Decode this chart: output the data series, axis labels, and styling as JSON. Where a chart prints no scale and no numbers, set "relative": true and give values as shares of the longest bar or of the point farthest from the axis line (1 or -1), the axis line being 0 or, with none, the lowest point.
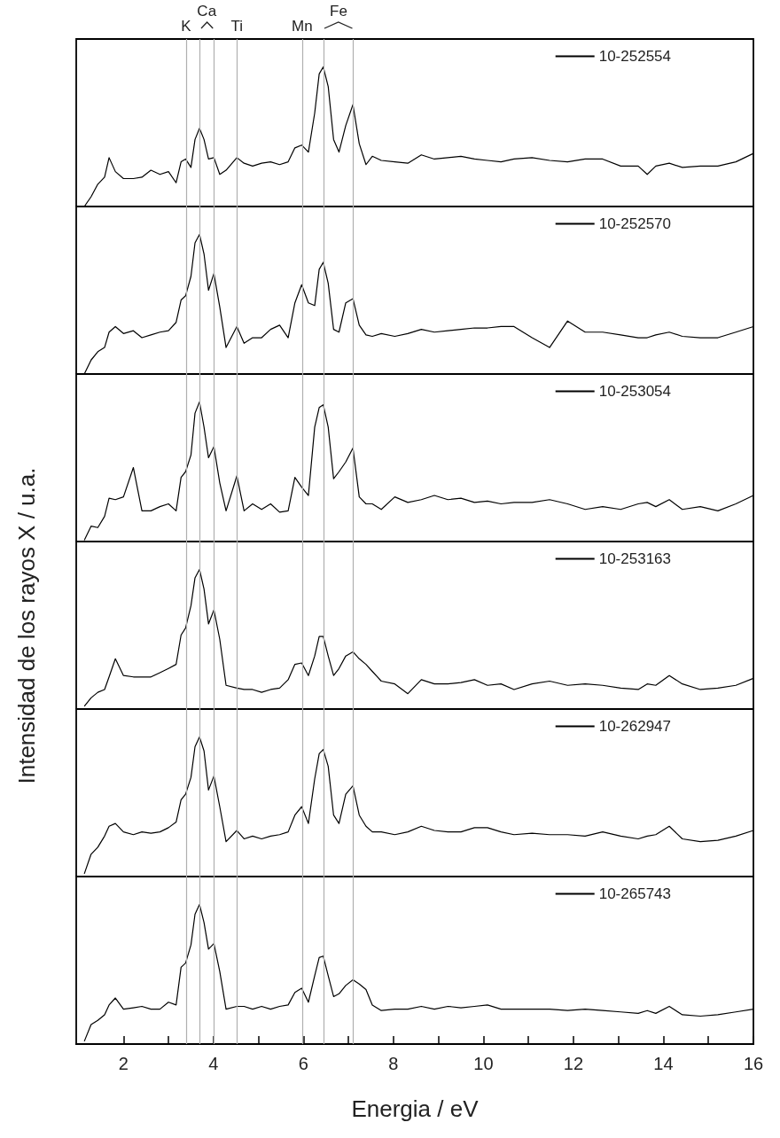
{
  "chart_data": [
    {
      "type": "line",
      "relative": true,
      "xlim": [
        0.95,
        16
      ],
      "tick_labels": false,
      "legend": "top right",
      "ref_lines": [
        {
          "axis": "x",
          "value": 3.39,
          "color": "#b0b0b0",
          "label": "K"
        },
        {
          "axis": "x",
          "value": 3.7,
          "color": "#b0b0b0",
          "label": "Ca"
        },
        {
          "axis": "x",
          "value": 4.0,
          "color": "#b0b0b0"
        },
        {
          "axis": "x",
          "value": 4.52,
          "color": "#b0b0b0",
          "label": "Ti"
        },
        {
          "axis": "x",
          "value": 5.97,
          "color": "#b0b0b0",
          "label": "Mn"
        },
        {
          "axis": "x",
          "value": 6.45,
          "color": "#b0b0b0",
          "label": "Fe"
        },
        {
          "axis": "x",
          "value": 7.11,
          "color": "#b0b0b0"
        }
      ],
      "x": [
        1.13,
        1.28,
        1.43,
        1.58,
        1.68,
        1.82,
        2.0,
        2.22,
        2.41,
        2.61,
        2.81,
        3.0,
        3.17,
        3.28,
        3.38,
        3.5,
        3.59,
        3.69,
        3.79,
        3.89,
        4.01,
        4.14,
        4.28,
        4.52,
        4.68,
        4.87,
        5.07,
        5.27,
        5.47,
        5.66,
        5.81,
        5.96,
        6.11,
        6.25,
        6.35,
        6.44,
        6.55,
        6.67,
        6.79,
        6.94,
        7.1,
        7.24,
        7.39,
        7.53,
        7.73,
        8.03,
        8.32,
        8.62,
        8.91,
        9.21,
        9.5,
        9.8,
        10.09,
        10.39,
        10.68,
        11.08,
        11.47,
        11.87,
        12.26,
        12.65,
        13.05,
        13.44,
        13.64,
        13.83,
        14.13,
        14.42,
        14.82,
        15.21,
        15.61,
        16.0
      ],
      "series": [
        {
          "name": "10-252554",
          "color": "#000000",
          "values": [
            0.0,
            0.07,
            0.16,
            0.21,
            0.35,
            0.25,
            0.2,
            0.2,
            0.21,
            0.26,
            0.23,
            0.25,
            0.17,
            0.32,
            0.34,
            0.28,
            0.48,
            0.56,
            0.48,
            0.34,
            0.35,
            0.23,
            0.26,
            0.35,
            0.31,
            0.29,
            0.31,
            0.32,
            0.3,
            0.32,
            0.42,
            0.44,
            0.39,
            0.67,
            0.95,
            1.0,
            0.86,
            0.48,
            0.39,
            0.58,
            0.73,
            0.45,
            0.3,
            0.36,
            0.33,
            0.32,
            0.31,
            0.37,
            0.34,
            0.35,
            0.36,
            0.34,
            0.33,
            0.32,
            0.34,
            0.35,
            0.33,
            0.32,
            0.34,
            0.34,
            0.29,
            0.29,
            0.23,
            0.29,
            0.31,
            0.28,
            0.29,
            0.29,
            0.32,
            0.38
          ]
        }
      ]
    },
    {
      "type": "line",
      "relative": true,
      "xlim": [
        0.95,
        16
      ],
      "tick_labels": false,
      "legend": "top right",
      "ref_lines": [
        {
          "axis": "x",
          "value": 3.39,
          "color": "#b0b0b0"
        },
        {
          "axis": "x",
          "value": 3.7,
          "color": "#b0b0b0"
        },
        {
          "axis": "x",
          "value": 4.0,
          "color": "#b0b0b0"
        },
        {
          "axis": "x",
          "value": 4.52,
          "color": "#b0b0b0"
        },
        {
          "axis": "x",
          "value": 5.97,
          "color": "#b0b0b0"
        },
        {
          "axis": "x",
          "value": 6.45,
          "color": "#b0b0b0"
        },
        {
          "axis": "x",
          "value": 7.11,
          "color": "#b0b0b0"
        }
      ],
      "x": [
        1.13,
        1.28,
        1.43,
        1.58,
        1.68,
        1.82,
        2.0,
        2.22,
        2.41,
        2.61,
        2.81,
        3.0,
        3.17,
        3.28,
        3.38,
        3.5,
        3.59,
        3.69,
        3.79,
        3.89,
        4.01,
        4.14,
        4.28,
        4.52,
        4.68,
        4.87,
        5.07,
        5.27,
        5.47,
        5.66,
        5.81,
        5.96,
        6.11,
        6.25,
        6.35,
        6.44,
        6.55,
        6.67,
        6.79,
        6.94,
        7.1,
        7.24,
        7.39,
        7.53,
        7.73,
        8.03,
        8.32,
        8.62,
        8.91,
        9.21,
        9.5,
        9.8,
        10.09,
        10.39,
        10.68,
        11.08,
        11.47,
        11.87,
        12.26,
        12.65,
        13.05,
        13.44,
        13.64,
        13.83,
        14.13,
        14.42,
        14.82,
        15.21,
        15.61,
        16.0
      ],
      "series": [
        {
          "name": "10-252570",
          "color": "#000000",
          "values": [
            0.0,
            0.1,
            0.16,
            0.19,
            0.3,
            0.34,
            0.29,
            0.31,
            0.26,
            0.28,
            0.3,
            0.31,
            0.37,
            0.53,
            0.56,
            0.7,
            0.94,
            1.0,
            0.86,
            0.6,
            0.72,
            0.48,
            0.19,
            0.34,
            0.22,
            0.26,
            0.26,
            0.32,
            0.35,
            0.26,
            0.51,
            0.64,
            0.51,
            0.49,
            0.75,
            0.8,
            0.65,
            0.32,
            0.3,
            0.51,
            0.54,
            0.35,
            0.28,
            0.27,
            0.29,
            0.27,
            0.29,
            0.32,
            0.3,
            0.31,
            0.32,
            0.33,
            0.33,
            0.34,
            0.34,
            0.26,
            0.19,
            0.38,
            0.3,
            0.3,
            0.28,
            0.26,
            0.26,
            0.28,
            0.3,
            0.27,
            0.26,
            0.26,
            0.3,
            0.34
          ]
        }
      ]
    },
    {
      "type": "line",
      "relative": true,
      "xlim": [
        0.95,
        16
      ],
      "tick_labels": false,
      "legend": "top right",
      "ref_lines": [
        {
          "axis": "x",
          "value": 3.39,
          "color": "#b0b0b0"
        },
        {
          "axis": "x",
          "value": 3.7,
          "color": "#b0b0b0"
        },
        {
          "axis": "x",
          "value": 4.0,
          "color": "#b0b0b0"
        },
        {
          "axis": "x",
          "value": 4.52,
          "color": "#b0b0b0"
        },
        {
          "axis": "x",
          "value": 5.97,
          "color": "#b0b0b0"
        },
        {
          "axis": "x",
          "value": 6.45,
          "color": "#b0b0b0"
        },
        {
          "axis": "x",
          "value": 7.11,
          "color": "#b0b0b0"
        }
      ],
      "x": [
        1.13,
        1.28,
        1.43,
        1.58,
        1.68,
        1.82,
        2.0,
        2.22,
        2.41,
        2.61,
        2.81,
        3.0,
        3.17,
        3.28,
        3.38,
        3.5,
        3.59,
        3.69,
        3.79,
        3.89,
        4.01,
        4.14,
        4.28,
        4.52,
        4.68,
        4.87,
        5.07,
        5.27,
        5.47,
        5.66,
        5.81,
        5.96,
        6.11,
        6.25,
        6.35,
        6.44,
        6.55,
        6.67,
        6.79,
        6.94,
        7.1,
        7.24,
        7.39,
        7.53,
        7.73,
        8.03,
        8.32,
        8.62,
        8.91,
        9.21,
        9.5,
        9.8,
        10.09,
        10.39,
        10.68,
        11.08,
        11.47,
        11.87,
        12.26,
        12.65,
        13.05,
        13.44,
        13.64,
        13.83,
        14.13,
        14.42,
        14.82,
        15.21,
        15.61,
        16.0
      ],
      "series": [
        {
          "name": "10-253054",
          "color": "#000000",
          "values": [
            0.01,
            0.11,
            0.1,
            0.18,
            0.31,
            0.3,
            0.32,
            0.53,
            0.22,
            0.22,
            0.25,
            0.27,
            0.22,
            0.46,
            0.5,
            0.62,
            0.92,
            1.0,
            0.82,
            0.6,
            0.68,
            0.42,
            0.22,
            0.47,
            0.22,
            0.27,
            0.23,
            0.27,
            0.21,
            0.22,
            0.46,
            0.39,
            0.33,
            0.82,
            0.96,
            0.98,
            0.82,
            0.45,
            0.5,
            0.57,
            0.67,
            0.32,
            0.27,
            0.27,
            0.23,
            0.32,
            0.28,
            0.3,
            0.33,
            0.3,
            0.31,
            0.28,
            0.29,
            0.27,
            0.28,
            0.28,
            0.3,
            0.27,
            0.23,
            0.25,
            0.23,
            0.27,
            0.28,
            0.25,
            0.3,
            0.23,
            0.25,
            0.22,
            0.27,
            0.33
          ]
        }
      ]
    },
    {
      "type": "line",
      "relative": true,
      "ylabel": "Intensidad de los rayos X / u.a.",
      "xlim": [
        0.95,
        16
      ],
      "tick_labels": false,
      "legend": "top right",
      "ref_lines": [
        {
          "axis": "x",
          "value": 3.39,
          "color": "#b0b0b0"
        },
        {
          "axis": "x",
          "value": 3.7,
          "color": "#b0b0b0"
        },
        {
          "axis": "x",
          "value": 4.0,
          "color": "#b0b0b0"
        },
        {
          "axis": "x",
          "value": 4.52,
          "color": "#b0b0b0"
        },
        {
          "axis": "x",
          "value": 5.97,
          "color": "#b0b0b0"
        },
        {
          "axis": "x",
          "value": 6.45,
          "color": "#b0b0b0"
        },
        {
          "axis": "x",
          "value": 7.11,
          "color": "#b0b0b0"
        }
      ],
      "x": [
        1.13,
        1.28,
        1.43,
        1.58,
        1.68,
        1.82,
        2.0,
        2.22,
        2.41,
        2.61,
        2.81,
        3.0,
        3.17,
        3.28,
        3.38,
        3.5,
        3.59,
        3.69,
        3.79,
        3.89,
        4.01,
        4.14,
        4.28,
        4.52,
        4.68,
        4.87,
        5.07,
        5.27,
        5.47,
        5.66,
        5.81,
        5.96,
        6.11,
        6.25,
        6.35,
        6.44,
        6.55,
        6.67,
        6.79,
        6.94,
        7.1,
        7.24,
        7.39,
        7.53,
        7.73,
        8.03,
        8.32,
        8.62,
        8.91,
        9.21,
        9.5,
        9.8,
        10.09,
        10.39,
        10.68,
        11.08,
        11.47,
        11.87,
        12.26,
        12.65,
        13.05,
        13.44,
        13.64,
        13.83,
        14.13,
        14.42,
        14.82,
        15.21,
        15.61,
        16.0
      ],
      "series": [
        {
          "name": "10-253163",
          "color": "#000000",
          "values": [
            0.02,
            0.08,
            0.12,
            0.14,
            0.23,
            0.36,
            0.24,
            0.23,
            0.23,
            0.23,
            0.26,
            0.29,
            0.32,
            0.53,
            0.58,
            0.74,
            0.94,
            1.0,
            0.86,
            0.61,
            0.71,
            0.5,
            0.17,
            0.15,
            0.14,
            0.14,
            0.12,
            0.14,
            0.15,
            0.21,
            0.32,
            0.33,
            0.24,
            0.38,
            0.52,
            0.52,
            0.38,
            0.24,
            0.29,
            0.38,
            0.41,
            0.36,
            0.32,
            0.27,
            0.2,
            0.18,
            0.11,
            0.21,
            0.18,
            0.18,
            0.19,
            0.21,
            0.17,
            0.18,
            0.14,
            0.18,
            0.2,
            0.17,
            0.18,
            0.17,
            0.15,
            0.14,
            0.18,
            0.17,
            0.24,
            0.18,
            0.14,
            0.15,
            0.17,
            0.22
          ]
        }
      ]
    },
    {
      "type": "line",
      "relative": true,
      "xlim": [
        0.95,
        16
      ],
      "tick_labels": false,
      "legend": "top right",
      "ref_lines": [
        {
          "axis": "x",
          "value": 3.39,
          "color": "#b0b0b0"
        },
        {
          "axis": "x",
          "value": 3.7,
          "color": "#b0b0b0"
        },
        {
          "axis": "x",
          "value": 4.0,
          "color": "#b0b0b0"
        },
        {
          "axis": "x",
          "value": 4.52,
          "color": "#b0b0b0"
        },
        {
          "axis": "x",
          "value": 5.97,
          "color": "#b0b0b0"
        },
        {
          "axis": "x",
          "value": 6.45,
          "color": "#b0b0b0"
        },
        {
          "axis": "x",
          "value": 7.11,
          "color": "#b0b0b0"
        }
      ],
      "x": [
        1.13,
        1.28,
        1.43,
        1.58,
        1.68,
        1.82,
        2.0,
        2.22,
        2.41,
        2.61,
        2.81,
        3.0,
        3.17,
        3.28,
        3.38,
        3.5,
        3.59,
        3.69,
        3.79,
        3.89,
        4.01,
        4.14,
        4.28,
        4.52,
        4.68,
        4.87,
        5.07,
        5.27,
        5.47,
        5.66,
        5.81,
        5.96,
        6.11,
        6.25,
        6.35,
        6.44,
        6.55,
        6.67,
        6.79,
        6.94,
        7.1,
        7.24,
        7.39,
        7.53,
        7.73,
        8.03,
        8.32,
        8.62,
        8.91,
        9.21,
        9.5,
        9.8,
        10.09,
        10.39,
        10.68,
        11.08,
        11.47,
        11.87,
        12.26,
        12.65,
        13.05,
        13.44,
        13.64,
        13.83,
        14.13,
        14.42,
        14.82,
        15.21,
        15.61,
        16.0
      ],
      "series": [
        {
          "name": "10-262947",
          "color": "#000000",
          "values": [
            0.02,
            0.16,
            0.21,
            0.29,
            0.36,
            0.38,
            0.32,
            0.3,
            0.32,
            0.31,
            0.32,
            0.35,
            0.39,
            0.55,
            0.59,
            0.71,
            0.93,
            1.0,
            0.9,
            0.62,
            0.72,
            0.5,
            0.25,
            0.33,
            0.27,
            0.29,
            0.27,
            0.29,
            0.3,
            0.32,
            0.44,
            0.5,
            0.38,
            0.7,
            0.88,
            0.91,
            0.79,
            0.44,
            0.38,
            0.59,
            0.65,
            0.44,
            0.36,
            0.32,
            0.32,
            0.3,
            0.32,
            0.36,
            0.33,
            0.32,
            0.32,
            0.35,
            0.35,
            0.32,
            0.3,
            0.31,
            0.3,
            0.3,
            0.29,
            0.32,
            0.29,
            0.27,
            0.29,
            0.3,
            0.36,
            0.27,
            0.25,
            0.26,
            0.29,
            0.33
          ]
        }
      ]
    },
    {
      "type": "line",
      "relative": true,
      "xlim": [
        0.95,
        16
      ],
      "xticks": [
        2,
        {
          "value": 3,
          "label": null
        },
        4,
        {
          "value": 5,
          "label": null
        },
        6,
        {
          "value": 7,
          "label": null
        },
        8,
        {
          "value": 9,
          "label": null
        },
        10,
        {
          "value": 11,
          "label": null
        },
        12,
        {
          "value": 13,
          "label": null
        },
        14,
        {
          "value": 15,
          "label": null
        },
        16
      ],
      "tick_labels": "x",
      "legend": "top right",
      "xlabel": "Energia / eV",
      "ref_lines": [
        {
          "axis": "x",
          "value": 3.39,
          "color": "#b0b0b0"
        },
        {
          "axis": "x",
          "value": 3.7,
          "color": "#b0b0b0"
        },
        {
          "axis": "x",
          "value": 4.0,
          "color": "#b0b0b0"
        },
        {
          "axis": "x",
          "value": 4.52,
          "color": "#b0b0b0"
        },
        {
          "axis": "x",
          "value": 5.97,
          "color": "#b0b0b0"
        },
        {
          "axis": "x",
          "value": 6.45,
          "color": "#b0b0b0"
        },
        {
          "axis": "x",
          "value": 7.11,
          "color": "#b0b0b0"
        }
      ],
      "x": [
        1.13,
        1.28,
        1.43,
        1.58,
        1.68,
        1.82,
        2.0,
        2.22,
        2.41,
        2.61,
        2.81,
        3.0,
        3.17,
        3.28,
        3.38,
        3.5,
        3.59,
        3.69,
        3.79,
        3.89,
        4.01,
        4.14,
        4.28,
        4.52,
        4.68,
        4.87,
        5.07,
        5.27,
        5.47,
        5.66,
        5.81,
        5.96,
        6.11,
        6.25,
        6.35,
        6.44,
        6.55,
        6.67,
        6.79,
        6.94,
        7.1,
        7.24,
        7.39,
        7.53,
        7.73,
        8.03,
        8.32,
        8.62,
        8.91,
        9.21,
        9.5,
        9.8,
        10.09,
        10.39,
        10.68,
        11.08,
        11.47,
        11.87,
        12.26,
        12.65,
        13.05,
        13.44,
        13.64,
        13.83,
        14.13,
        14.42,
        14.82,
        15.21,
        15.61,
        16.0
      ],
      "series": [
        {
          "name": "10-265743",
          "color": "#000000",
          "values": [
            0.02,
            0.14,
            0.17,
            0.21,
            0.28,
            0.33,
            0.25,
            0.26,
            0.27,
            0.25,
            0.25,
            0.3,
            0.28,
            0.55,
            0.58,
            0.71,
            0.93,
            1.0,
            0.87,
            0.68,
            0.72,
            0.52,
            0.25,
            0.27,
            0.27,
            0.25,
            0.27,
            0.25,
            0.27,
            0.28,
            0.37,
            0.4,
            0.3,
            0.49,
            0.62,
            0.63,
            0.49,
            0.34,
            0.36,
            0.42,
            0.46,
            0.43,
            0.39,
            0.28,
            0.24,
            0.25,
            0.25,
            0.27,
            0.25,
            0.27,
            0.26,
            0.27,
            0.28,
            0.25,
            0.25,
            0.25,
            0.25,
            0.24,
            0.25,
            0.24,
            0.23,
            0.22,
            0.24,
            0.22,
            0.27,
            0.21,
            0.2,
            0.21,
            0.23,
            0.25
          ]
        }
      ]
    }
  ]
}
